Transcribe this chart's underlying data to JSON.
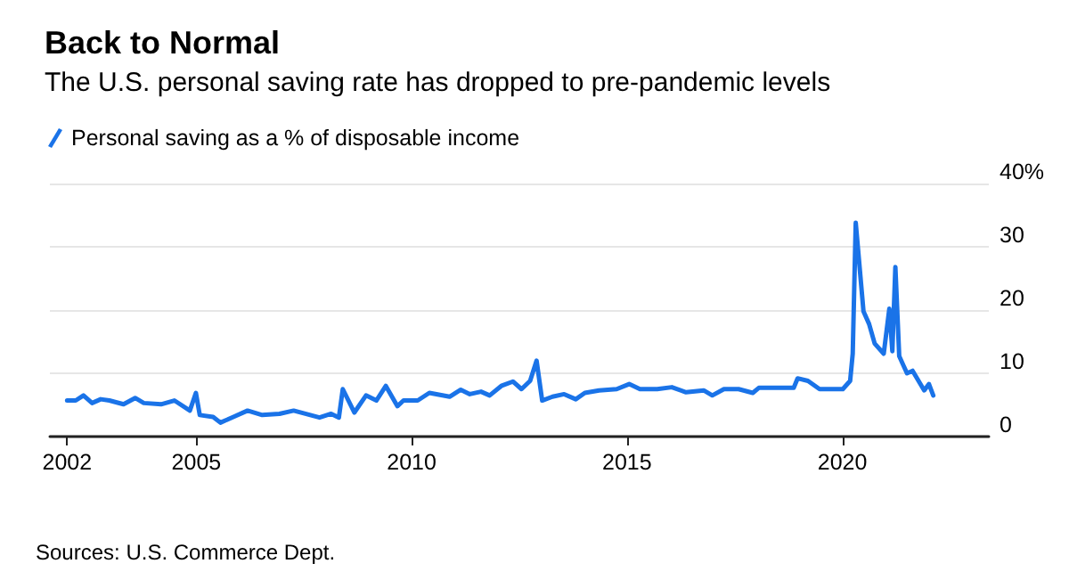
{
  "chart_data": {
    "type": "line",
    "title": "Back to Normal",
    "subtitle": "The U.S. personal saving rate has dropped to pre-pandemic levels",
    "annotations": [
      "Sources: U.S. Commerce Dept."
    ],
    "legend": "top left",
    "grid": "y",
    "marker": "none",
    "line_style": "solid",
    "xlim": [
      2001.6,
      2023.4
    ],
    "xticks": [
      2002,
      2005,
      2010,
      2015,
      2020
    ],
    "ylim": [
      0,
      40
    ],
    "yticks": [
      0,
      10,
      20,
      30,
      {
        "value": 40,
        "label": "40%"
      }
    ],
    "series": [
      {
        "name": "Personal saving as a % of disposable income",
        "color": "#1a73e8",
        "x": [
          2002.0,
          2002.2,
          2002.38,
          2002.58,
          2002.78,
          2002.98,
          2003.31,
          2003.58,
          2003.78,
          2004.18,
          2004.49,
          2004.85,
          2004.99,
          2005.08,
          2005.39,
          2005.56,
          2005.86,
          2006.19,
          2006.53,
          2006.93,
          2007.26,
          2007.86,
          2008.13,
          2008.31,
          2008.4,
          2008.67,
          2008.94,
          2009.18,
          2009.4,
          2009.67,
          2009.81,
          2010.14,
          2010.41,
          2010.88,
          2011.14,
          2011.35,
          2011.61,
          2011.81,
          2012.08,
          2012.35,
          2012.55,
          2012.75,
          2012.9,
          2013.03,
          2013.27,
          2013.54,
          2013.81,
          2014.02,
          2014.35,
          2014.76,
          2015.05,
          2015.3,
          2015.7,
          2016.04,
          2016.37,
          2016.78,
          2016.98,
          2017.25,
          2017.59,
          2017.92,
          2018.06,
          2018.53,
          2018.87,
          2018.96,
          2019.2,
          2019.47,
          2019.74,
          2020.01,
          2020.18,
          2020.24,
          2020.31,
          2020.49,
          2020.62,
          2020.75,
          2020.96,
          2021.09,
          2021.16,
          2021.23,
          2021.32,
          2021.5,
          2021.63,
          2021.9,
          2022.01,
          2022.11
        ],
        "values": [
          5.7,
          5.7,
          6.5,
          5.3,
          5.9,
          5.7,
          5.1,
          6.1,
          5.3,
          5.1,
          5.7,
          4.1,
          6.9,
          3.4,
          3.1,
          2.2,
          3.1,
          4.1,
          3.4,
          3.6,
          4.1,
          3.0,
          3.6,
          3.0,
          7.5,
          3.8,
          6.5,
          5.7,
          8.0,
          4.8,
          5.7,
          5.7,
          6.9,
          6.3,
          7.4,
          6.7,
          7.1,
          6.5,
          8.0,
          8.7,
          7.5,
          8.8,
          12.0,
          5.7,
          6.3,
          6.7,
          5.9,
          6.9,
          7.3,
          7.5,
          8.3,
          7.5,
          7.5,
          7.8,
          7.0,
          7.3,
          6.5,
          7.5,
          7.5,
          6.9,
          7.7,
          7.7,
          7.7,
          9.2,
          8.8,
          7.5,
          7.5,
          7.5,
          8.8,
          13.1,
          33.8,
          19.8,
          17.8,
          14.7,
          13.1,
          20.2,
          13.5,
          26.8,
          12.7,
          10.0,
          10.4,
          7.3,
          8.3,
          6.5
        ]
      }
    ]
  }
}
